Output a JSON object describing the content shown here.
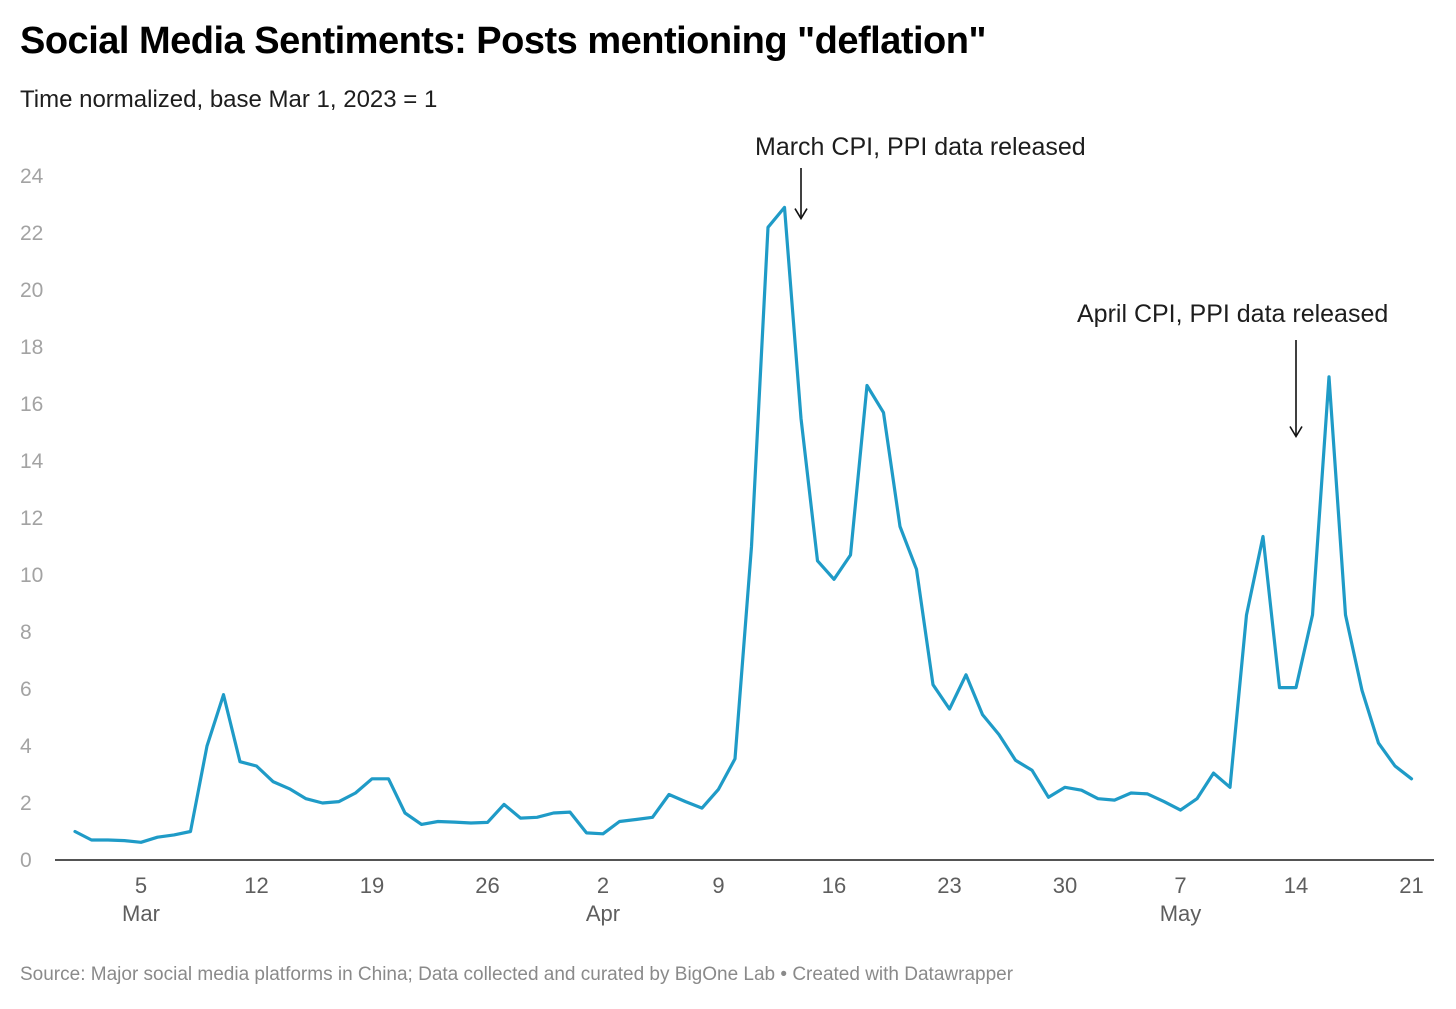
{
  "chart_data": {
    "type": "line",
    "title": "Social Media Sentiments: Posts mentioning \"deflation\"",
    "subtitle": "Time normalized, base Mar 1, 2023 = 1",
    "source": "Source: Major social media platforms in China; Data collected and curated by BigOne Lab • Created with Datawrapper",
    "color": "#1f9bc7",
    "x_start": "2023-03-01",
    "ylim": [
      0,
      24
    ],
    "y_ticks": [
      0,
      2,
      4,
      6,
      8,
      10,
      12,
      14,
      16,
      18,
      20,
      22,
      24
    ],
    "x_ticks": [
      {
        "date": "2023-03-05",
        "label": "5",
        "month": "Mar"
      },
      {
        "date": "2023-03-12",
        "label": "12",
        "month": ""
      },
      {
        "date": "2023-03-19",
        "label": "19",
        "month": ""
      },
      {
        "date": "2023-03-26",
        "label": "26",
        "month": ""
      },
      {
        "date": "2023-04-02",
        "label": "2",
        "month": "Apr"
      },
      {
        "date": "2023-04-09",
        "label": "9",
        "month": ""
      },
      {
        "date": "2023-04-16",
        "label": "16",
        "month": ""
      },
      {
        "date": "2023-04-23",
        "label": "23",
        "month": ""
      },
      {
        "date": "2023-04-30",
        "label": "30",
        "month": ""
      },
      {
        "date": "2023-05-07",
        "label": "7",
        "month": "May"
      },
      {
        "date": "2023-05-14",
        "label": "14",
        "month": ""
      },
      {
        "date": "2023-05-21",
        "label": "21",
        "month": ""
      }
    ],
    "values": [
      1.0,
      0.7,
      0.7,
      0.68,
      0.62,
      0.8,
      0.88,
      1.0,
      4.0,
      5.8,
      3.45,
      3.3,
      2.75,
      2.5,
      2.15,
      2.0,
      2.05,
      2.35,
      2.85,
      2.85,
      1.65,
      1.25,
      1.35,
      1.33,
      1.3,
      1.32,
      1.95,
      1.47,
      1.5,
      1.65,
      1.68,
      0.95,
      0.92,
      1.35,
      1.42,
      1.5,
      2.3,
      2.05,
      1.82,
      2.48,
      3.55,
      11.0,
      22.2,
      22.9,
      15.5,
      10.5,
      9.85,
      10.7,
      16.65,
      15.7,
      11.7,
      10.2,
      6.15,
      5.3,
      6.5,
      5.1,
      4.4,
      3.5,
      3.15,
      2.2,
      2.55,
      2.45,
      2.15,
      2.1,
      2.35,
      2.32,
      2.05,
      1.75,
      2.15,
      3.05,
      2.55,
      8.6,
      11.35,
      6.05,
      6.05,
      8.6,
      16.95,
      8.6,
      5.95,
      4.1,
      3.3,
      2.85
    ],
    "annotations": [
      {
        "text": "March CPI, PPI data released",
        "date": "2023-04-14",
        "y_top": 23.7
      },
      {
        "text": "April CPI, PPI data released",
        "date": "2023-05-14",
        "y_top": 15.0
      }
    ]
  }
}
